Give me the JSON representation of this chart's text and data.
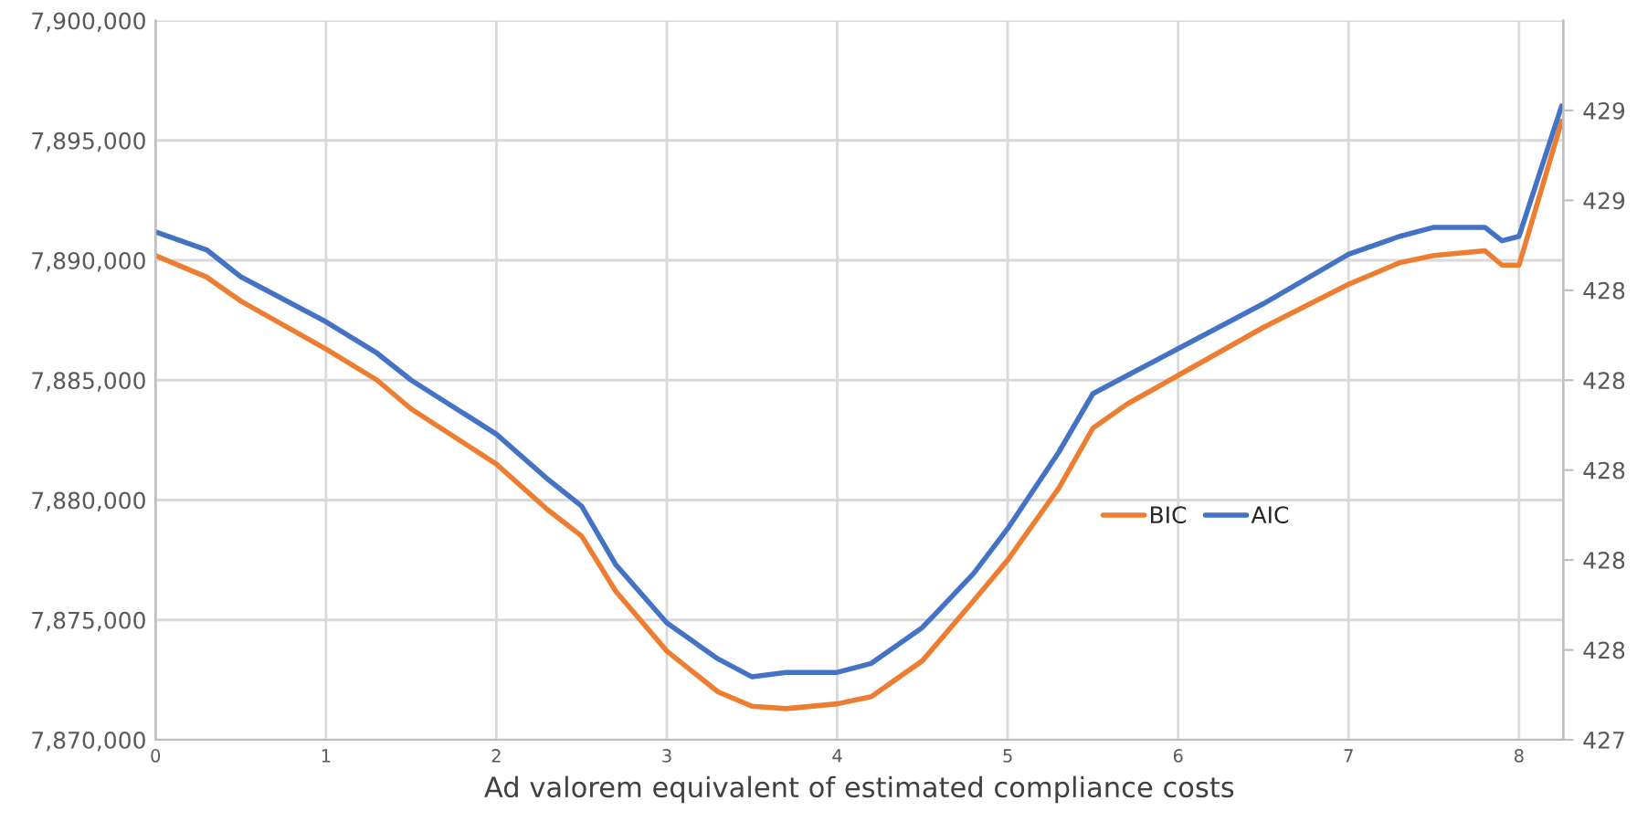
{
  "chart_data": {
    "type": "line",
    "xlabel": "Ad valorem equivalent of estimated compliance costs",
    "x": [
      0,
      0.3,
      0.5,
      1,
      1.3,
      1.5,
      2,
      2.3,
      2.5,
      2.7,
      3,
      3.3,
      3.5,
      3.7,
      4,
      4.2,
      4.5,
      4.8,
      5,
      5.3,
      5.5,
      5.7,
      6,
      6.5,
      7,
      7.3,
      7.5,
      7.8,
      7.9,
      8.0,
      8.25
    ],
    "series": [
      {
        "name": "BIC",
        "color": "#ed7d31",
        "values": [
          7890200,
          7889300,
          7888300,
          7886300,
          7885000,
          7883800,
          7881500,
          7879600,
          7878500,
          7876200,
          7873700,
          7872000,
          7871400,
          7871300,
          7871500,
          7871800,
          7873300,
          7875800,
          7877500,
          7880500,
          7883000,
          7884000,
          7885200,
          7887200,
          7889000,
          7889900,
          7890200,
          7890400,
          7889800,
          7889800,
          7895800
        ]
      },
      {
        "name": "AIC",
        "color": "#4472c4",
        "axis": "y2",
        "values": [
          428.53,
          428.49,
          428.43,
          428.33,
          428.26,
          428.2,
          428.08,
          427.98,
          427.92,
          427.79,
          427.66,
          427.58,
          427.54,
          427.55,
          427.55,
          427.57,
          427.65,
          427.77,
          427.87,
          428.04,
          428.17,
          428.21,
          428.27,
          428.37,
          428.48,
          428.52,
          428.54,
          428.54,
          428.51,
          428.52,
          428.81
        ]
      }
    ],
    "xlim": [
      0,
      8.26
    ],
    "xticks": [
      0,
      1,
      2,
      3,
      4,
      5,
      6,
      7,
      8
    ],
    "ylim": [
      7870000,
      7900000
    ],
    "yticks": [
      {
        "value": 7870000,
        "label": "7,870,000"
      },
      {
        "value": 7875000,
        "label": "7,875,000"
      },
      {
        "value": 7880000,
        "label": "7,880,000"
      },
      {
        "value": 7885000,
        "label": "7,885,000"
      },
      {
        "value": 7890000,
        "label": "7,890,000"
      },
      {
        "value": 7895000,
        "label": "7,895,000"
      },
      {
        "value": 7900000,
        "label": "7,900,000"
      }
    ],
    "y2lim": [
      427.4,
      429.0
    ],
    "y2ticks": [
      {
        "value": 427.4,
        "label": "427"
      },
      {
        "value": 427.6,
        "label": "428"
      },
      {
        "value": 427.8,
        "label": "428"
      },
      {
        "value": 428.0,
        "label": "428"
      },
      {
        "value": 428.2,
        "label": "428"
      },
      {
        "value": 428.4,
        "label": "428"
      },
      {
        "value": 428.6,
        "label": "429"
      },
      {
        "value": 428.8,
        "label": "429"
      }
    ],
    "grid": true,
    "legend": "right",
    "marker": "none",
    "line_style": "solid"
  }
}
